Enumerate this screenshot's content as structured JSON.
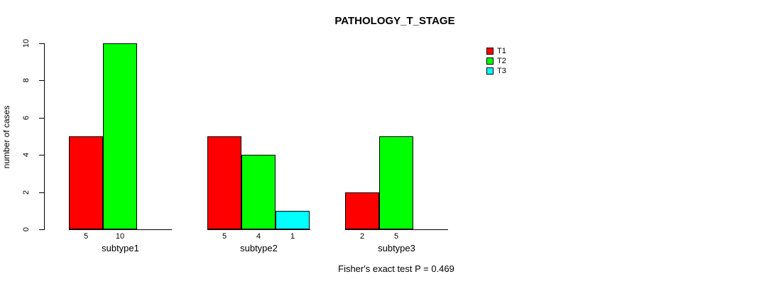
{
  "chart_data": {
    "type": "bar",
    "title": "PATHOLOGY_T_STAGE",
    "ylabel": "number of cases",
    "xlabel": "",
    "ylim": [
      0,
      10
    ],
    "yticks": [
      0,
      2,
      4,
      6,
      8,
      10
    ],
    "categories": [
      "subtype1",
      "subtype2",
      "subtype3"
    ],
    "series": [
      {
        "name": "T1",
        "color": "#ff0000",
        "values": [
          5,
          5,
          2
        ]
      },
      {
        "name": "T2",
        "color": "#00ff00",
        "values": [
          10,
          4,
          5
        ]
      },
      {
        "name": "T3",
        "color": "#00ffff",
        "values": [
          0,
          1,
          0
        ]
      }
    ],
    "legend": {
      "position": "top-right",
      "entries": [
        "T1",
        "T2",
        "T3"
      ]
    },
    "annotation": "Fisher's exact test P = 0.469",
    "grid": false,
    "background": "#ffffff",
    "bar_border_color": "#000000"
  }
}
